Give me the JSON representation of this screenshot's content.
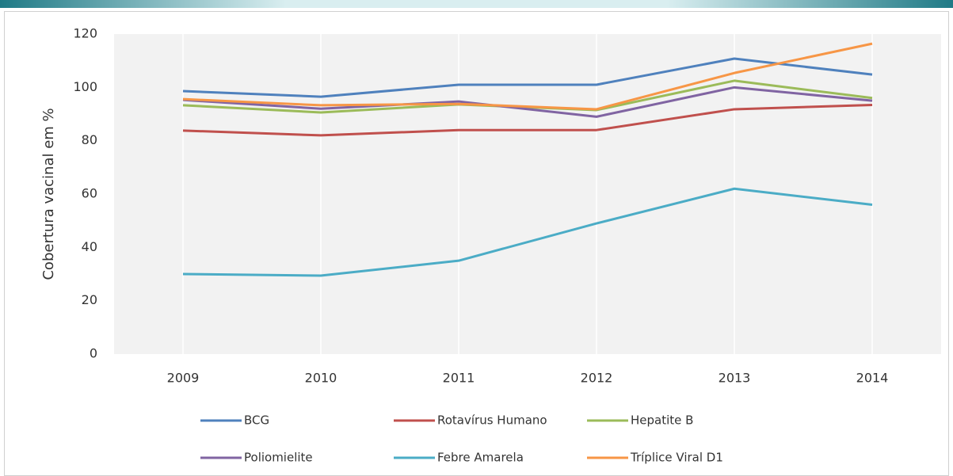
{
  "chart_data": {
    "type": "line",
    "y_label": "Cobertura  vacinal em %",
    "x": [
      "2009",
      "2010",
      "2011",
      "2012",
      "2013",
      "2014"
    ],
    "ylim": [
      0,
      120
    ],
    "yticks": [
      0,
      20,
      40,
      60,
      80,
      100,
      120
    ],
    "legend": "bottom",
    "series": [
      {
        "name": "BCG",
        "color": "#4f81bd",
        "values": [
          98.6,
          96.5,
          101,
          101,
          110.8,
          104.8
        ]
      },
      {
        "name": "Rotavírus Humano",
        "color": "#c0504d",
        "values": [
          83.8,
          82,
          84,
          84,
          91.8,
          93.4
        ]
      },
      {
        "name": "Hepatite B",
        "color": "#9bbb59",
        "values": [
          93.3,
          90.6,
          93.6,
          91.5,
          102.5,
          96
        ]
      },
      {
        "name": "Poliomielite",
        "color": "#8064a2",
        "values": [
          95.3,
          92,
          94.7,
          89,
          100,
          95
        ]
      },
      {
        "name": "Febre Amarela",
        "color": "#4bacc6",
        "values": [
          30,
          29.4,
          35,
          49,
          62,
          56
        ]
      },
      {
        "name": "Tríplice Viral  D1",
        "color": "#f79646",
        "values": [
          95.6,
          93.3,
          93.8,
          91.8,
          105.4,
          116.4
        ]
      }
    ]
  }
}
